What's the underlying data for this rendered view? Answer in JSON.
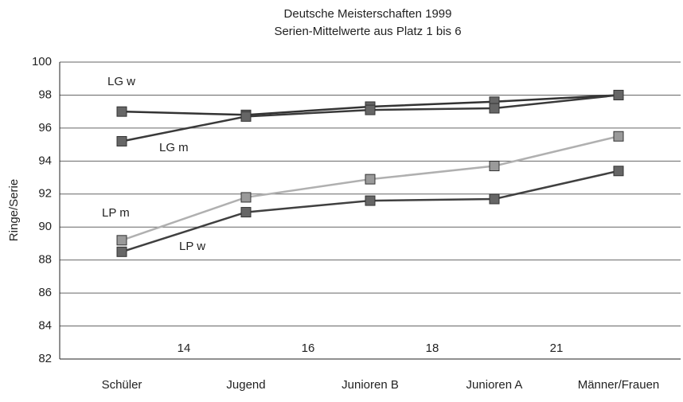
{
  "chart_data": {
    "type": "line",
    "title": "Deutsche Meisterschaften 1999",
    "subtitle": "Serien-Mittelwerte aus Platz 1 bis 6",
    "y_label": "Ringe/Serie",
    "categories": [
      "Schüler",
      "Jugend",
      "Junioren B",
      "Junioren A",
      "Männer/Frauen"
    ],
    "series": [
      {
        "name": "LG w",
        "color": "#333333",
        "values": [
          97.0,
          96.8,
          97.3,
          97.6,
          98.0
        ]
      },
      {
        "name": "LG m",
        "color": "#3a3a3a",
        "values": [
          95.2,
          96.7,
          97.1,
          97.2,
          98.0
        ]
      },
      {
        "name": "LP m",
        "color": "#b0b0b0",
        "values": [
          89.2,
          91.8,
          92.9,
          93.7,
          95.5
        ]
      },
      {
        "name": "LP w",
        "color": "#404040",
        "values": [
          88.5,
          90.9,
          91.6,
          91.7,
          93.4
        ]
      }
    ],
    "annotations": [
      "14",
      "16",
      "18",
      "21"
    ],
    "ylim": [
      82,
      100
    ],
    "yticks": [
      82,
      84,
      86,
      88,
      90,
      92,
      94,
      96,
      98,
      100
    ],
    "grid": true
  }
}
